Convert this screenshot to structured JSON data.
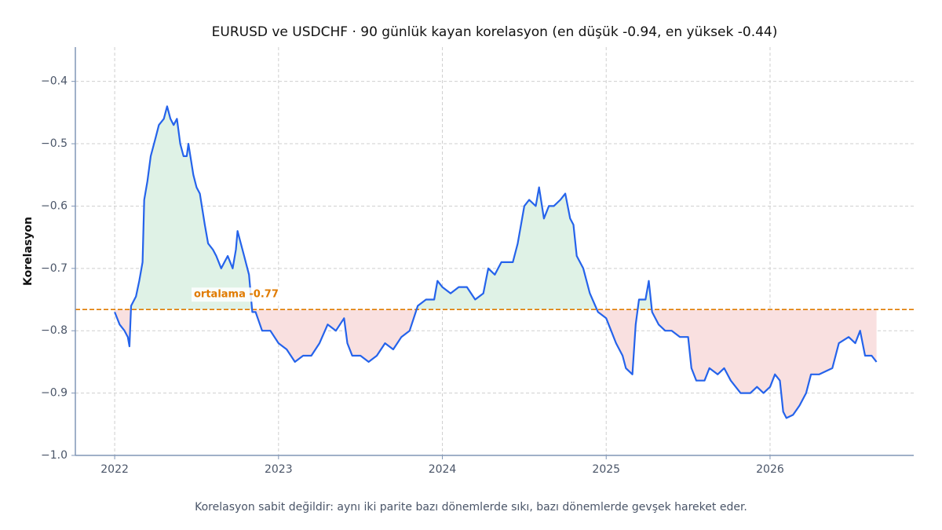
{
  "chart_data": {
    "type": "line",
    "title": "EURUSD ve USDCHF · 90 günlük kayan korelasyon (en düşük -0.94, en yüksek -0.44)",
    "footnote": "Korelasyon sabit değildir: aynı iki parite bazı dönemlerde sıkı, bazı dönemlerde gevşek hareket eder.",
    "y_label": "Korelasyon",
    "x": [
      2022.0,
      2022.03,
      2022.06,
      2022.08,
      2022.09,
      2022.1,
      2022.13,
      2022.15,
      2022.17,
      2022.18,
      2022.2,
      2022.22,
      2022.25,
      2022.27,
      2022.3,
      2022.32,
      2022.34,
      2022.36,
      2022.38,
      2022.4,
      2022.42,
      2022.44,
      2022.45,
      2022.48,
      2022.5,
      2022.52,
      2022.55,
      2022.57,
      2022.6,
      2022.62,
      2022.65,
      2022.67,
      2022.69,
      2022.72,
      2022.74,
      2022.75,
      2022.77,
      2022.79,
      2022.82,
      2022.84,
      2022.86,
      2022.9,
      2022.95,
      2023.0,
      2023.05,
      2023.1,
      2023.15,
      2023.2,
      2023.25,
      2023.3,
      2023.35,
      2023.4,
      2023.42,
      2023.45,
      2023.5,
      2023.55,
      2023.6,
      2023.65,
      2023.7,
      2023.75,
      2023.8,
      2023.85,
      2023.9,
      2023.95,
      2023.97,
      2024.0,
      2024.05,
      2024.1,
      2024.15,
      2024.2,
      2024.25,
      2024.28,
      2024.32,
      2024.36,
      2024.4,
      2024.43,
      2024.46,
      2024.48,
      2024.5,
      2024.53,
      2024.57,
      2024.59,
      2024.62,
      2024.65,
      2024.68,
      2024.72,
      2024.75,
      2024.78,
      2024.8,
      2024.82,
      2024.86,
      2024.9,
      2024.95,
      2025.0,
      2025.03,
      2025.06,
      2025.1,
      2025.12,
      2025.16,
      2025.18,
      2025.2,
      2025.24,
      2025.26,
      2025.28,
      2025.32,
      2025.36,
      2025.4,
      2025.45,
      2025.5,
      2025.52,
      2025.55,
      2025.6,
      2025.63,
      2025.68,
      2025.72,
      2025.76,
      2025.82,
      2025.88,
      2025.92,
      2025.96,
      2026.0,
      2026.03,
      2026.06,
      2026.08,
      2026.1,
      2026.14,
      2026.18,
      2026.22,
      2026.25,
      2026.3,
      2026.38,
      2026.42,
      2026.48,
      2026.52,
      2026.55,
      2026.58,
      2026.62,
      2026.65
    ],
    "series": [
      {
        "color": "#2563eb",
        "values": [
          -0.77,
          -0.79,
          -0.8,
          -0.81,
          -0.825,
          -0.76,
          -0.745,
          -0.72,
          -0.69,
          -0.59,
          -0.56,
          -0.52,
          -0.49,
          -0.47,
          -0.46,
          -0.44,
          -0.46,
          -0.47,
          -0.46,
          -0.5,
          -0.52,
          -0.52,
          -0.5,
          -0.55,
          -0.57,
          -0.58,
          -0.63,
          -0.66,
          -0.67,
          -0.68,
          -0.7,
          -0.69,
          -0.68,
          -0.7,
          -0.67,
          -0.64,
          -0.66,
          -0.68,
          -0.71,
          -0.77,
          -0.77,
          -0.8,
          -0.8,
          -0.82,
          -0.83,
          -0.85,
          -0.84,
          -0.84,
          -0.82,
          -0.79,
          -0.8,
          -0.78,
          -0.82,
          -0.84,
          -0.84,
          -0.85,
          -0.84,
          -0.82,
          -0.83,
          -0.81,
          -0.8,
          -0.76,
          -0.75,
          -0.75,
          -0.72,
          -0.73,
          -0.74,
          -0.73,
          -0.73,
          -0.75,
          -0.74,
          -0.7,
          -0.71,
          -0.69,
          -0.69,
          -0.69,
          -0.66,
          -0.63,
          -0.6,
          -0.59,
          -0.6,
          -0.57,
          -0.62,
          -0.6,
          -0.6,
          -0.59,
          -0.58,
          -0.62,
          -0.63,
          -0.68,
          -0.7,
          -0.74,
          -0.77,
          -0.78,
          -0.8,
          -0.82,
          -0.84,
          -0.86,
          -0.87,
          -0.79,
          -0.75,
          -0.75,
          -0.72,
          -0.77,
          -0.79,
          -0.8,
          -0.8,
          -0.81,
          -0.81,
          -0.86,
          -0.88,
          -0.88,
          -0.86,
          -0.87,
          -0.86,
          -0.88,
          -0.9,
          -0.9,
          -0.89,
          -0.9,
          -0.89,
          -0.87,
          -0.88,
          -0.93,
          -0.94,
          -0.935,
          -0.92,
          -0.9,
          -0.87,
          -0.87,
          -0.86,
          -0.82,
          -0.81,
          -0.82,
          -0.8,
          -0.84,
          -0.84,
          -0.85
        ]
      }
    ],
    "mean_line": {
      "value": -0.766,
      "label": "ortalama -0.77",
      "color": "#e07b00"
    },
    "fill_above_color": "#dff2e6",
    "fill_below_color": "#f9e0e0",
    "xlim": [
      2021.76,
      2026.877
    ],
    "ylim": [
      -1.0,
      -0.345
    ],
    "xticks": [
      2022,
      2023,
      2024,
      2025,
      2026
    ],
    "yticks": [
      {
        "value": -1.0,
        "label": "−1.0"
      },
      {
        "value": -0.9,
        "label": "−0.9"
      },
      {
        "value": -0.8,
        "label": "−0.8"
      },
      {
        "value": -0.7,
        "label": "−0.7"
      },
      {
        "value": -0.6,
        "label": "−0.6"
      },
      {
        "value": -0.5,
        "label": "−0.5"
      },
      {
        "value": -0.4,
        "label": "−0.4"
      }
    ],
    "grid": true
  }
}
